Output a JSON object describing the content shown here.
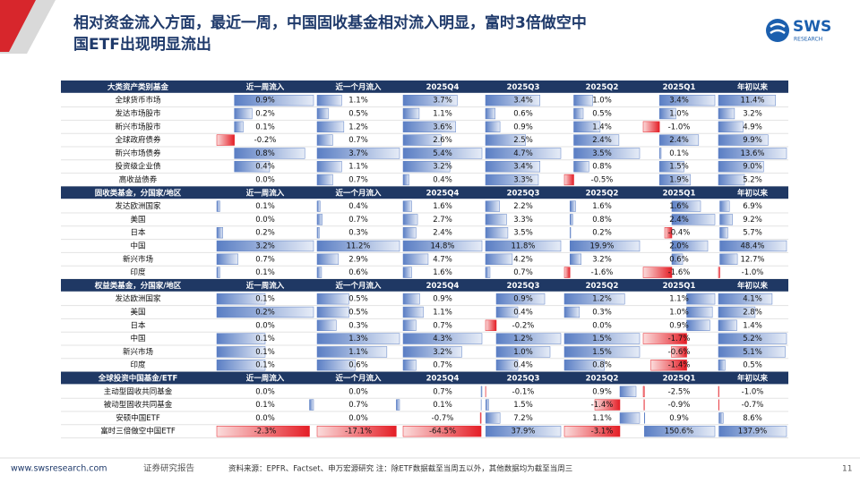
{
  "header": {
    "title_line1": "相对资金流入方面，最近一周，中国固收基金相对流入明显，富时3倍做空中",
    "title_line2": "国ETF出现明显流出",
    "logo": "SWS",
    "logo_sub": "RESEARCH"
  },
  "table": {
    "sections": [
      {
        "title": "大类资产类别基金",
        "columns": [
          "近一周流入",
          "近一个月流入",
          "2025Q4",
          "2025Q3",
          "2025Q2",
          "2025Q1",
          "年初以来"
        ],
        "rows": [
          {
            "label": "全球货币市场",
            "cells": [
              "0.9%",
              "1.1%",
              "3.7%",
              "3.4%",
              "1.0%",
              "3.4%",
              "11.4%"
            ]
          },
          {
            "label": "发达市场股市",
            "cells": [
              "0.2%",
              "0.5%",
              "1.1%",
              "0.6%",
              "0.5%",
              "1.0%",
              "3.2%"
            ]
          },
          {
            "label": "新兴市场股市",
            "cells": [
              "0.1%",
              "1.2%",
              "3.6%",
              "0.9%",
              "1.4%",
              "-1.0%",
              "4.9%"
            ]
          },
          {
            "label": "全球政府债券",
            "cells": [
              "-0.2%",
              "0.7%",
              "2.6%",
              "2.5%",
              "2.4%",
              "2.4%",
              "9.9%"
            ]
          },
          {
            "label": "新兴市场债券",
            "cells": [
              "0.8%",
              "3.7%",
              "5.4%",
              "4.7%",
              "3.5%",
              "0.1%",
              "13.6%"
            ]
          },
          {
            "label": "投资级企业债",
            "cells": [
              "0.4%",
              "1.1%",
              "3.2%",
              "3.4%",
              "0.8%",
              "1.5%",
              "9.0%"
            ]
          },
          {
            "label": "高收益债券",
            "cells": [
              "0.0%",
              "0.7%",
              "0.4%",
              "3.3%",
              "-0.5%",
              "1.9%",
              "5.2%"
            ]
          }
        ]
      },
      {
        "title": "固收类基金，分国家/地区",
        "columns": [
          "近一周流入",
          "近一个月流入",
          "2025Q4",
          "2025Q3",
          "2025Q2",
          "2025Q1",
          "年初以来"
        ],
        "rows": [
          {
            "label": "发达欧洲国家",
            "cells": [
              "0.1%",
              "0.4%",
              "1.6%",
              "2.2%",
              "1.6%",
              "1.6%",
              "6.9%"
            ]
          },
          {
            "label": "美国",
            "cells": [
              "0.0%",
              "0.7%",
              "2.7%",
              "3.3%",
              "0.8%",
              "2.4%",
              "9.2%"
            ]
          },
          {
            "label": "日本",
            "cells": [
              "0.2%",
              "0.3%",
              "2.4%",
              "3.5%",
              "0.2%",
              "-0.4%",
              "5.7%"
            ]
          },
          {
            "label": "中国",
            "cells": [
              "3.2%",
              "11.2%",
              "14.8%",
              "11.8%",
              "19.9%",
              "2.0%",
              "48.4%"
            ]
          },
          {
            "label": "新兴市场",
            "cells": [
              "0.7%",
              "2.9%",
              "4.7%",
              "4.2%",
              "3.2%",
              "0.6%",
              "12.7%"
            ]
          },
          {
            "label": "印度",
            "cells": [
              "0.1%",
              "0.6%",
              "1.6%",
              "0.7%",
              "-1.6%",
              "-1.6%",
              "-1.0%"
            ]
          }
        ]
      },
      {
        "title": "权益类基金，分国家/地区",
        "columns": [
          "近一周流入",
          "近一个月流入",
          "2025Q4",
          "2025Q3",
          "2025Q2",
          "2025Q1",
          "年初以来"
        ],
        "rows": [
          {
            "label": "发达欧洲国家",
            "cells": [
              "0.1%",
              "0.5%",
              "0.9%",
              "0.9%",
              "1.2%",
              "1.1%",
              "4.1%"
            ]
          },
          {
            "label": "美国",
            "cells": [
              "0.2%",
              "0.5%",
              "1.1%",
              "0.4%",
              "0.3%",
              "1.0%",
              "2.8%"
            ]
          },
          {
            "label": "日本",
            "cells": [
              "0.0%",
              "0.3%",
              "0.7%",
              "-0.2%",
              "0.0%",
              "0.9%",
              "1.4%"
            ]
          },
          {
            "label": "中国",
            "cells": [
              "0.1%",
              "1.3%",
              "4.3%",
              "1.2%",
              "1.5%",
              "-1.7%",
              "5.2%"
            ]
          },
          {
            "label": "新兴市场",
            "cells": [
              "0.1%",
              "1.1%",
              "3.2%",
              "1.0%",
              "1.5%",
              "-0.6%",
              "5.1%"
            ]
          },
          {
            "label": "印度",
            "cells": [
              "0.1%",
              "0.6%",
              "0.7%",
              "0.4%",
              "0.8%",
              "-1.4%",
              "0.5%"
            ]
          }
        ]
      },
      {
        "title": "全球投资中国基金/ETF",
        "columns": [
          "近一周流入",
          "近一个月流入",
          "2025Q4",
          "2025Q3",
          "2025Q2",
          "2025Q1",
          "年初以来"
        ],
        "rows": [
          {
            "label": "主动型固收共同基金",
            "cells": [
              "0.0%",
              "0.0%",
              "0.7%",
              "-0.1%",
              "0.9%",
              "-2.5%",
              "-1.0%"
            ]
          },
          {
            "label": "被动型固收共同基金",
            "cells": [
              "0.1%",
              "0.7%",
              "0.1%",
              "1.5%",
              "-1.4%",
              "-0.9%",
              "-0.7%"
            ]
          },
          {
            "label": "安硕中国ETF",
            "cells": [
              "0.0%",
              "0.0%",
              "-0.7%",
              "7.2%",
              "1.1%",
              "0.9%",
              "8.6%"
            ]
          },
          {
            "label": "富时三倍做空中国ETF",
            "cells": [
              "-2.3%",
              "-17.1%",
              "-64.5%",
              "37.9%",
              "-3.1%",
              "150.6%",
              "137.9%"
            ]
          }
        ]
      }
    ]
  },
  "footer": {
    "site": "www.swsresearch.com",
    "label": "证券研究报告",
    "source": "资料来源：EPFR、Factset、申万宏源研究 注：除ETF数据截至当周五以外，其他数据均为截至当周三",
    "page": "11"
  }
}
